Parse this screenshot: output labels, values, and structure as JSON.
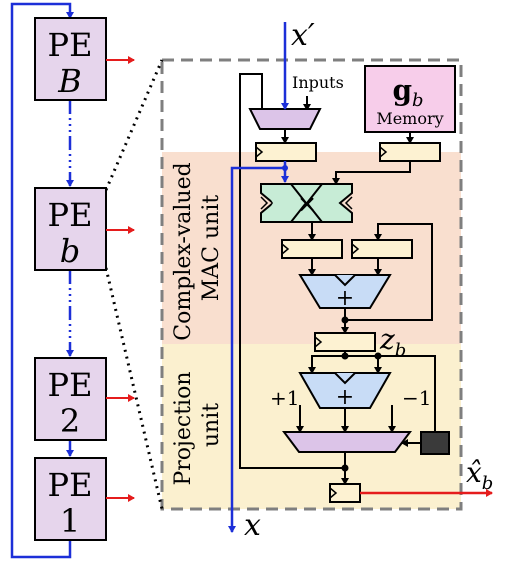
{
  "pes": [
    {
      "title": "PE",
      "sub": "B"
    },
    {
      "title": "PE",
      "sub": "b"
    },
    {
      "title": "PE",
      "sub": "2"
    },
    {
      "title": "PE",
      "sub": "1"
    }
  ],
  "labels": {
    "x_prime": "x′",
    "inputs": "Inputs",
    "memory_title": "g",
    "memory_sub": "b",
    "memory_label": "Memory",
    "mac_unit_line1": "Complex-valued",
    "mac_unit_line2": "MAC unit",
    "projection_line1": "Projection",
    "projection_line2": "unit",
    "z_main": "z",
    "z_sub": "b",
    "plus_one": "+1",
    "minus_one": "−1",
    "x_out": "x",
    "xhat_main": "x̂",
    "xhat_sub": "b",
    "multiply": "×",
    "plus": "+"
  },
  "colors": {
    "pe_fill": "#e6d5ec",
    "mac_bg": "#f9dfcf",
    "proj_bg": "#fbf0cf",
    "register": "#fdf2d2",
    "memory": "#f7cdea",
    "mux": "#dcc4e8",
    "adder": "#c8dcf6",
    "multiplier": "#c7ecd6",
    "blue": "#1c2fd8",
    "red": "#e51c1c"
  }
}
